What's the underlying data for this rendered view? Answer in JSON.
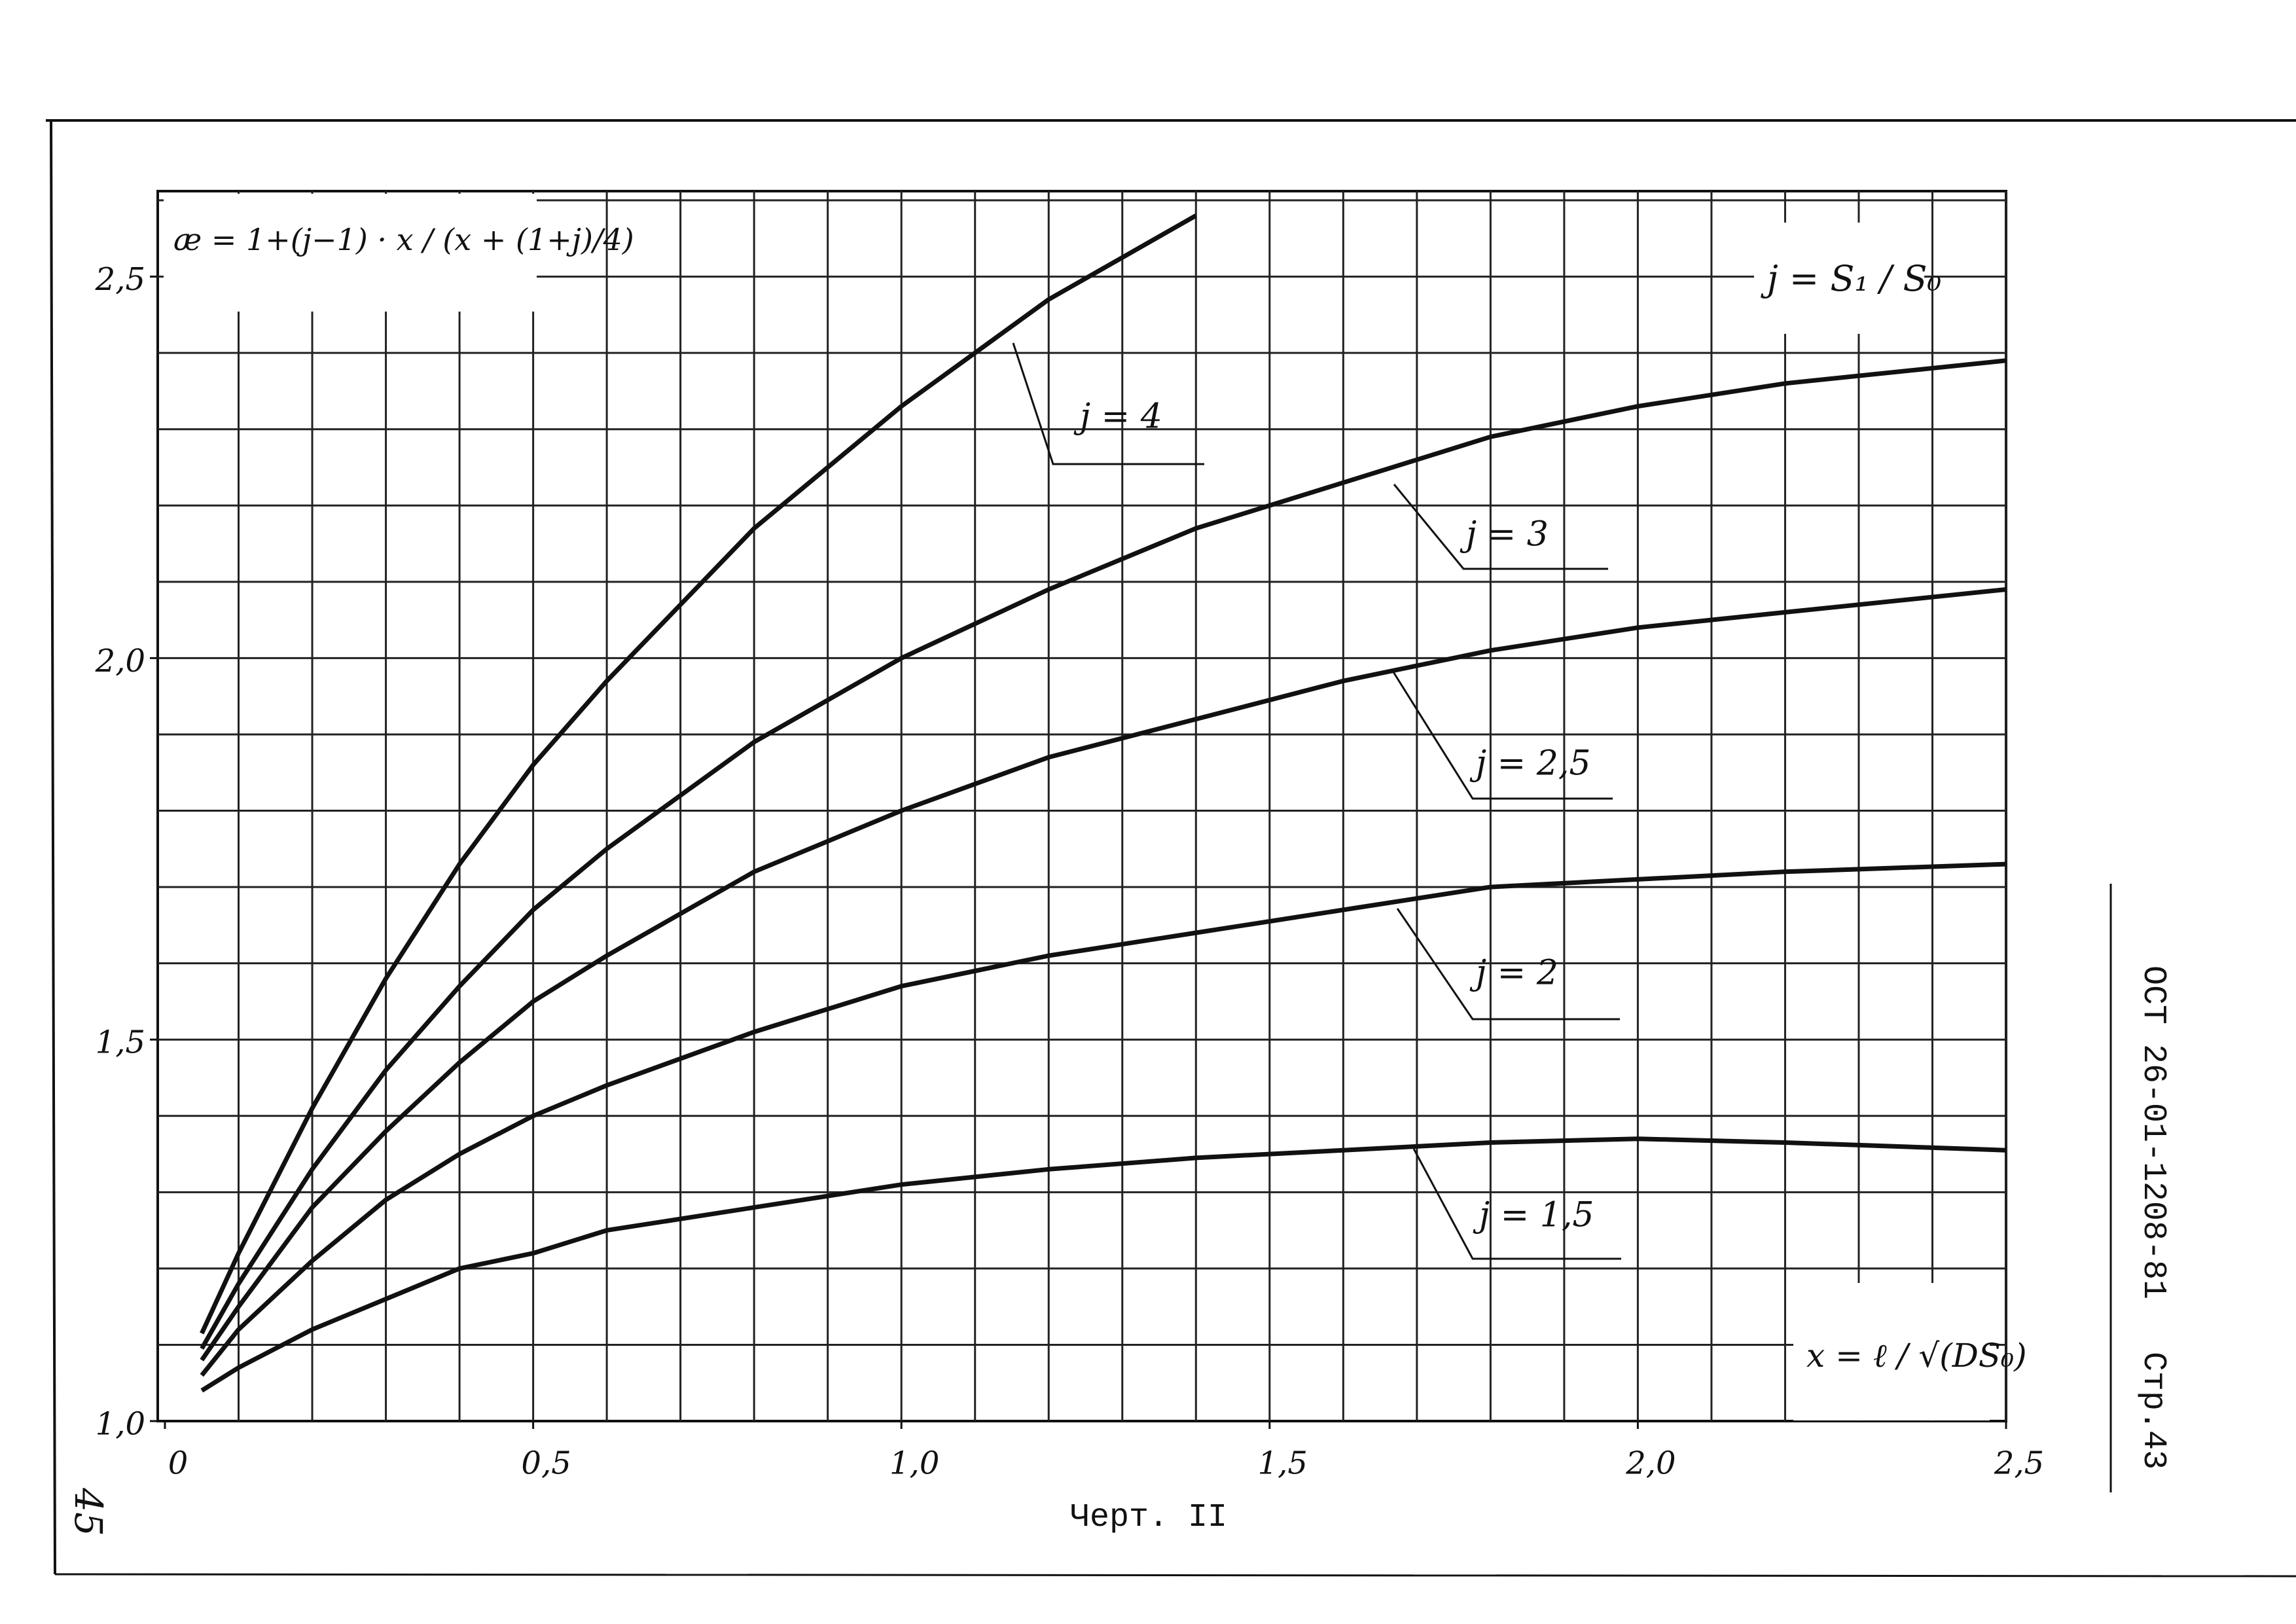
{
  "chart_data": {
    "type": "line",
    "formula": "æ = 1+(j−1) · x / (x + (1+j)/4)",
    "j_definition": "j = S₁ / S₀",
    "x_definition": "x = ℓ / √(DS₀)",
    "caption": "Черт. II",
    "document_code": "ОСТ 26-01-1208-81",
    "page_label": "Стр.43",
    "sheet_number": "45",
    "x": [
      0.05,
      0.1,
      0.2,
      0.3,
      0.4,
      0.5,
      0.6,
      0.8,
      1.0,
      1.2,
      1.4,
      1.6,
      1.8,
      2.0,
      2.2,
      2.5
    ],
    "series": [
      {
        "name": "j = 4",
        "color": "#111111",
        "values": [
          1.115,
          1.22,
          1.41,
          1.58,
          1.73,
          1.86,
          1.97,
          2.17,
          2.33,
          2.47,
          2.58,
          null,
          null,
          null,
          null,
          null
        ]
      },
      {
        "name": "j = 3",
        "color": "#111111",
        "values": [
          1.095,
          1.18,
          1.33,
          1.46,
          1.57,
          1.67,
          1.75,
          1.89,
          2.0,
          2.09,
          2.17,
          2.23,
          2.29,
          2.33,
          2.36,
          2.39
        ]
      },
      {
        "name": "j = 2,5",
        "color": "#111111",
        "values": [
          1.08,
          1.15,
          1.28,
          1.38,
          1.47,
          1.55,
          1.61,
          1.72,
          1.8,
          1.87,
          1.92,
          1.97,
          2.01,
          2.04,
          2.06,
          2.09
        ]
      },
      {
        "name": "j = 2",
        "color": "#111111",
        "values": [
          1.06,
          1.12,
          1.21,
          1.29,
          1.35,
          1.4,
          1.44,
          1.51,
          1.57,
          1.61,
          1.64,
          1.67,
          1.7,
          1.71,
          1.72,
          1.73
        ]
      },
      {
        "name": "j = 1,5",
        "color": "#111111",
        "values": [
          1.04,
          1.07,
          1.12,
          1.16,
          1.2,
          1.22,
          1.25,
          1.28,
          1.31,
          1.33,
          1.345,
          1.355,
          1.365,
          1.37,
          1.365,
          1.355
        ]
      }
    ],
    "xlim": [
      0,
      2.5
    ],
    "ylim": [
      1.0,
      2.6
    ],
    "xticks": [
      0,
      {
        "value": 0.5,
        "label": "0,5"
      },
      {
        "value": 1.0,
        "label": "1,0"
      },
      {
        "value": 1.5,
        "label": "1,5"
      },
      {
        "value": 2.0,
        "label": "2,0"
      },
      {
        "value": 2.5,
        "label": "2,5"
      }
    ],
    "yticks": [
      {
        "value": 1.0,
        "label": "1,0"
      },
      {
        "value": 1.5,
        "label": "1,5"
      },
      {
        "value": 2.0,
        "label": "2,0"
      },
      {
        "value": 2.5,
        "label": "2,5"
      }
    ],
    "xgrid": [
      0.1,
      0.2,
      0.3,
      0.4,
      0.5,
      0.6,
      0.7,
      0.8,
      0.9,
      1.0,
      1.1,
      1.2,
      1.3,
      1.4,
      1.5,
      1.6,
      1.7,
      1.8,
      1.9,
      2.0,
      2.1,
      2.2,
      2.3,
      2.4,
      2.5
    ],
    "ygrid": [
      1.1,
      1.2,
      1.3,
      1.4,
      1.5,
      1.6,
      1.7,
      1.8,
      1.9,
      2.0,
      2.1,
      2.2,
      2.3,
      2.4,
      2.5,
      2.6
    ],
    "grid": true
  }
}
